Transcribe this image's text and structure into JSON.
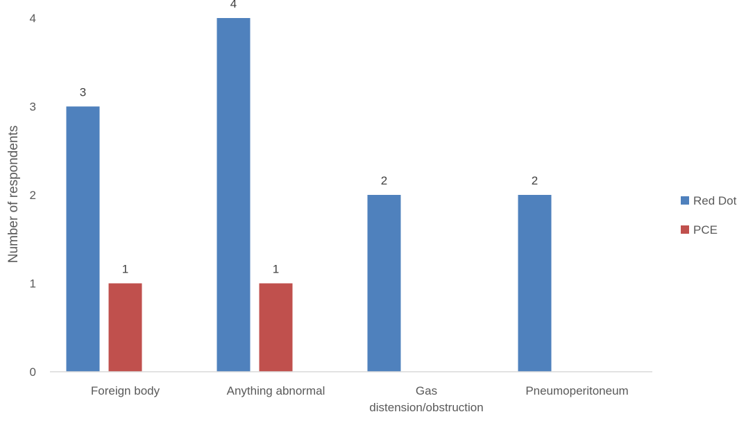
{
  "chart_data": {
    "type": "bar",
    "title": "",
    "xlabel": "",
    "ylabel": "Number of respondents",
    "categories": [
      [
        "Foreign body"
      ],
      [
        "Anything abnormal"
      ],
      [
        "Gas",
        "distension/obstruction"
      ],
      [
        "Pneumoperitoneum"
      ]
    ],
    "series": [
      {
        "name": "Red Dot",
        "color": "#4f81bd",
        "values": [
          3,
          4,
          2,
          2
        ]
      },
      {
        "name": "PCE",
        "color": "#c0504d",
        "values": [
          1,
          1,
          null,
          null
        ]
      }
    ],
    "ylim": [
      0,
      4
    ],
    "yticks": [
      0,
      1,
      2,
      3,
      4
    ],
    "grid": false,
    "legend": "right",
    "data_labels": true
  }
}
